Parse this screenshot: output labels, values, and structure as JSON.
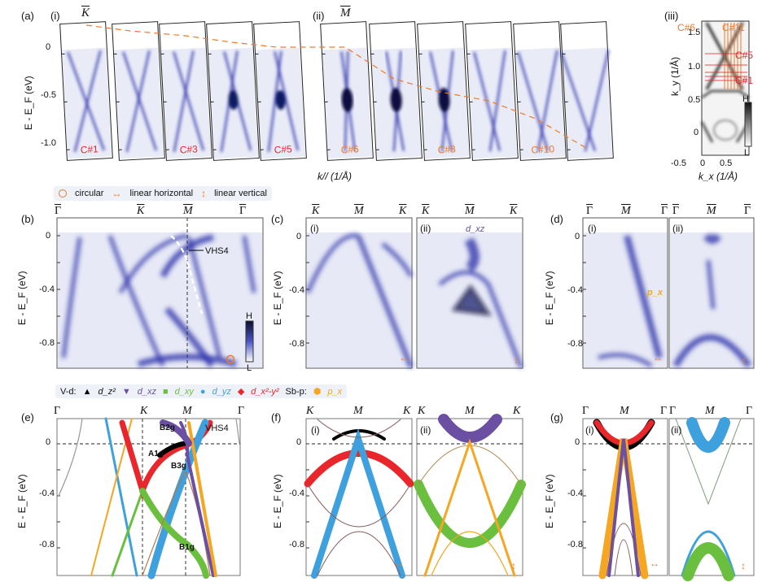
{
  "figure": {
    "panels": {
      "a": {
        "label": "(a)",
        "sub_i": "(i)",
        "sub_ii": "(ii)",
        "sub_iii": "(iii)",
        "point_i": "K",
        "point_ii": "M",
        "ylabel": "E - E_F (eV)",
        "xlabel": "k// (1/Å)",
        "yticks": [
          "0",
          "-0.5",
          "-1.0"
        ],
        "cuts": [
          "C#1",
          "",
          "C#3",
          "",
          "C#5",
          "C#6",
          "",
          "C#8",
          "",
          "C#10",
          ""
        ],
        "map": {
          "ylabel": "k_y (1/Å)",
          "xlabel": "k_x (1/Å)",
          "yticks": [
            "1.5",
            "1.0",
            "0.5",
            "0"
          ],
          "xticks": [
            "-0.5",
            "0",
            "0.5"
          ],
          "labels": [
            "C#6",
            "C#11",
            "C#5",
            "C#1"
          ],
          "colorbar_high": "H",
          "colorbar_low": "L"
        }
      },
      "polarization_legend": {
        "circular": "circular",
        "linear_horizontal": "linear horizontal",
        "linear_vertical": "linear vertical"
      },
      "b": {
        "label": "(b)",
        "points": [
          "Γ",
          "K",
          "M",
          "Γ"
        ],
        "ylabel": "E - E_F (eV)",
        "yticks": [
          "0",
          "-0.4",
          "-0.8"
        ],
        "annotation": "VHS4",
        "colorbar_high": "H",
        "colorbar_low": "L"
      },
      "c": {
        "label": "(c)",
        "points_i": [
          "K",
          "M",
          "K"
        ],
        "points_ii": [
          "K",
          "M",
          "K"
        ],
        "sub_i": "(i)",
        "sub_ii": "(ii)",
        "orbital_ii": "d_xz",
        "ylabel": "E - E_F (eV)",
        "yticks": [
          "0",
          "-0.4",
          "-0.8"
        ]
      },
      "d": {
        "label": "(d)",
        "points_i": [
          "Γ",
          "M",
          "Γ"
        ],
        "points_ii": [
          "Γ",
          "M",
          "Γ"
        ],
        "sub_i": "(i)",
        "sub_ii": "(ii)",
        "orbital_i": "p_x",
        "ylabel": "E - E_F (eV)",
        "yticks": [
          "0",
          "-0.4",
          "-0.8"
        ]
      },
      "orbital_legend": {
        "vd_prefix": "V-d:",
        "items": [
          {
            "symbol": "▲",
            "label": "d_z²",
            "color": "#000000"
          },
          {
            "symbol": "▼",
            "label": "d_xz",
            "color": "#6a4fa3"
          },
          {
            "symbol": "■",
            "label": "d_xy",
            "color": "#6abf3f"
          },
          {
            "symbol": "●",
            "label": "d_yz",
            "color": "#3ea0dc"
          },
          {
            "symbol": "◆",
            "label": "d_x²-y²",
            "color": "#e8262b"
          }
        ],
        "sbp_prefix": "Sb-p:",
        "sbp_item": {
          "symbol": "⬢",
          "label": "p_x",
          "color": "#f5a623"
        }
      },
      "e": {
        "label": "(e)",
        "points": [
          "Γ",
          "K",
          "M",
          "Γ"
        ],
        "ylabel": "E - E_F (eV)",
        "yticks": [
          "0",
          "-0.4",
          "-0.8"
        ],
        "annotations": [
          "B2g",
          "VHS4",
          "A1g",
          "B3g",
          "B1g"
        ]
      },
      "f": {
        "label": "(f)",
        "points_i": [
          "K",
          "M",
          "K"
        ],
        "points_ii": [
          "K",
          "M",
          "K"
        ],
        "sub_i": "(i)",
        "sub_ii": "(ii)",
        "ylabel": "E - E_F (eV)",
        "yticks": [
          "0",
          "-0.4",
          "-0.8"
        ]
      },
      "g": {
        "label": "(g)",
        "points_i": [
          "Γ",
          "M",
          "Γ"
        ],
        "points_ii": [
          "Γ",
          "M",
          "Γ"
        ],
        "sub_i": "(i)",
        "sub_ii": "(ii)",
        "ylabel": "E - E_F (eV)",
        "yticks": [
          "0",
          "-0.4",
          "-0.8"
        ]
      }
    },
    "colors": {
      "arpes": "#2a2fa8",
      "cut_red": "#e8262b",
      "cut_orange": "#f07a2a",
      "dz2": "#000000",
      "dxz": "#6a4fa3",
      "dxy": "#6abf3f",
      "dyz": "#3ea0dc",
      "dx2y2": "#e8262b",
      "px": "#f5a623",
      "thin": "#8a5a5a"
    }
  }
}
